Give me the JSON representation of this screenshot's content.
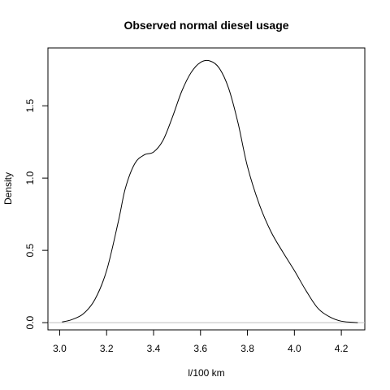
{
  "chart_data": {
    "type": "line",
    "title": "Observed normal diesel usage",
    "xlabel": "l/100 km",
    "ylabel": "Density",
    "xlim": [
      2.95,
      4.3
    ],
    "ylim": [
      -0.05,
      1.9
    ],
    "x_ticks": [
      {
        "value": 3.0,
        "label": "3.0"
      },
      {
        "value": 3.2,
        "label": "3.2"
      },
      {
        "value": 3.4,
        "label": "3.4"
      },
      {
        "value": 3.6,
        "label": "3.6"
      },
      {
        "value": 3.8,
        "label": "3.8"
      },
      {
        "value": 4.0,
        "label": "4.0"
      },
      {
        "value": 4.2,
        "label": "4.2"
      }
    ],
    "y_ticks": [
      {
        "value": 0.0,
        "label": "0.0"
      },
      {
        "value": 0.5,
        "label": "0.5"
      },
      {
        "value": 1.0,
        "label": "1.0"
      },
      {
        "value": 1.5,
        "label": "1.5"
      }
    ],
    "baseline": 0,
    "grid": false,
    "series": [
      {
        "color": "#000000",
        "x": [
          3.01,
          3.05,
          3.1,
          3.15,
          3.2,
          3.25,
          3.28,
          3.32,
          3.36,
          3.4,
          3.44,
          3.48,
          3.52,
          3.56,
          3.6,
          3.64,
          3.68,
          3.72,
          3.76,
          3.8,
          3.85,
          3.9,
          3.95,
          4.0,
          4.05,
          4.1,
          4.15,
          4.2,
          4.27
        ],
        "y": [
          0.005,
          0.02,
          0.06,
          0.16,
          0.36,
          0.7,
          0.93,
          1.1,
          1.16,
          1.18,
          1.26,
          1.42,
          1.6,
          1.73,
          1.8,
          1.81,
          1.76,
          1.62,
          1.38,
          1.08,
          0.82,
          0.63,
          0.49,
          0.36,
          0.22,
          0.1,
          0.04,
          0.01,
          0.0
        ]
      }
    ]
  }
}
